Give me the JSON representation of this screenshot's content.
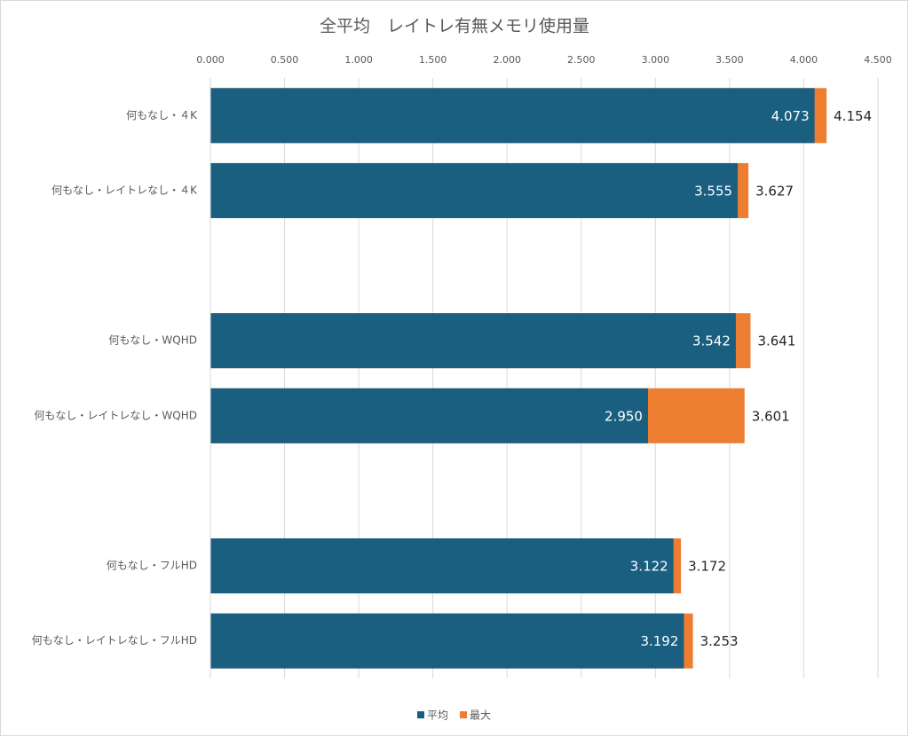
{
  "chart_data": {
    "type": "bar",
    "orientation": "horizontal",
    "overlap": true,
    "title": "全平均　レイトレ有無メモリ使用量",
    "categories": [
      "何もなし・４K",
      "何もなし・レイトレなし・４K",
      null,
      "何もなし・WQHD",
      "何もなし・レイトレなし・WQHD",
      null,
      "何もなし・フルHD",
      "何もなし・レイトレなし・フルHD"
    ],
    "series": [
      {
        "name": "最大",
        "color": "#ed7d31",
        "values": [
          4.154,
          3.627,
          null,
          3.641,
          3.601,
          null,
          3.172,
          3.253
        ],
        "value_labels": [
          "4.154",
          "3.627",
          null,
          "3.641",
          "3.601",
          null,
          "3.172",
          "3.253"
        ]
      },
      {
        "name": "平均",
        "color": "#1a5f80",
        "values": [
          4.073,
          3.555,
          null,
          3.542,
          2.95,
          null,
          3.122,
          3.192
        ],
        "value_labels": [
          "4.073",
          "3.555",
          null,
          "3.542",
          "2.950",
          null,
          "3.122",
          "3.192"
        ]
      }
    ],
    "xlim": [
      0,
      4.5
    ],
    "xticks": [
      {
        "value": 0,
        "label": "0.000"
      },
      {
        "value": 0.5,
        "label": "0.500"
      },
      {
        "value": 1,
        "label": "1.000"
      },
      {
        "value": 1.5,
        "label": "1.500"
      },
      {
        "value": 2,
        "label": "2.000"
      },
      {
        "value": 2.5,
        "label": "2.500"
      },
      {
        "value": 3,
        "label": "3.000"
      },
      {
        "value": 3.5,
        "label": "3.500"
      },
      {
        "value": 4,
        "label": "4.000"
      },
      {
        "value": 4.5,
        "label": "4.500"
      }
    ],
    "grid": true,
    "legend": "bottom"
  }
}
